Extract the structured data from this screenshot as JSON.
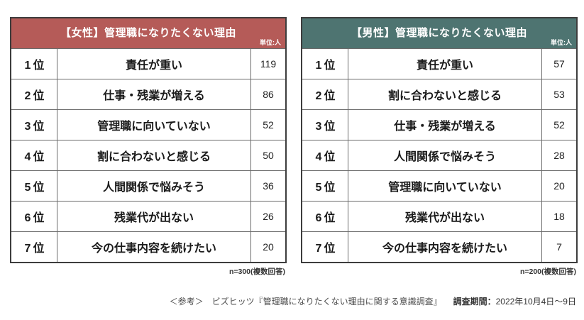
{
  "tables": [
    {
      "title": "【女性】管理職になりたくない理由",
      "unit_label": "単位:人",
      "header_color": "#b55b58",
      "note": "n=300(複数回答)",
      "rows": [
        {
          "rank": "1位",
          "reason": "責任が重い",
          "count": "119"
        },
        {
          "rank": "2位",
          "reason": "仕事・残業が増える",
          "count": "86"
        },
        {
          "rank": "3位",
          "reason": "管理職に向いていない",
          "count": "52"
        },
        {
          "rank": "4位",
          "reason": "割に合わないと感じる",
          "count": "50"
        },
        {
          "rank": "5位",
          "reason": "人間関係で悩みそう",
          "count": "36"
        },
        {
          "rank": "6位",
          "reason": "残業代が出ない",
          "count": "26"
        },
        {
          "rank": "7位",
          "reason": "今の仕事内容を続けたい",
          "count": "20"
        }
      ]
    },
    {
      "title": "【男性】管理職になりたくない理由",
      "unit_label": "単位:人",
      "header_color": "#4e7471",
      "note": "n=200(複数回答)",
      "rows": [
        {
          "rank": "1位",
          "reason": "責任が重い",
          "count": "57"
        },
        {
          "rank": "2位",
          "reason": "割に合わないと感じる",
          "count": "53"
        },
        {
          "rank": "3位",
          "reason": "仕事・残業が増える",
          "count": "52"
        },
        {
          "rank": "4位",
          "reason": "人間関係で悩みそう",
          "count": "28"
        },
        {
          "rank": "5位",
          "reason": "管理職に向いていない",
          "count": "20"
        },
        {
          "rank": "6位",
          "reason": "残業代が出ない",
          "count": "18"
        },
        {
          "rank": "7位",
          "reason": "今の仕事内容を続けたい",
          "count": "7"
        }
      ]
    }
  ],
  "caption": {
    "reference": "＜参考＞　ビズヒッツ『管理職になりたくない理由に関する意識調査』",
    "survey_period_label": "調査期間：",
    "survey_period_value": "2022年10月4日～9日"
  },
  "chart_data": [
    {
      "type": "table",
      "title": "【女性】管理職になりたくない理由",
      "unit": "人",
      "ranks": [
        "1位",
        "2位",
        "3位",
        "4位",
        "5位",
        "6位",
        "7位"
      ],
      "categories": [
        "責任が重い",
        "仕事・残業が増える",
        "管理職に向いていない",
        "割に合わないと感じる",
        "人間関係で悩みそう",
        "残業代が出ない",
        "今の仕事内容を続けたい"
      ],
      "values": [
        119,
        86,
        52,
        50,
        36,
        26,
        20
      ],
      "sample": "n=300(複数回答)"
    },
    {
      "type": "table",
      "title": "【男性】管理職になりたくない理由",
      "unit": "人",
      "ranks": [
        "1位",
        "2位",
        "3位",
        "4位",
        "5位",
        "6位",
        "7位"
      ],
      "categories": [
        "責任が重い",
        "割に合わないと感じる",
        "仕事・残業が増える",
        "人間関係で悩みそう",
        "管理職に向いていない",
        "残業代が出ない",
        "今の仕事内容を続けたい"
      ],
      "values": [
        57,
        53,
        52,
        28,
        20,
        18,
        7
      ],
      "sample": "n=200(複数回答)"
    }
  ]
}
